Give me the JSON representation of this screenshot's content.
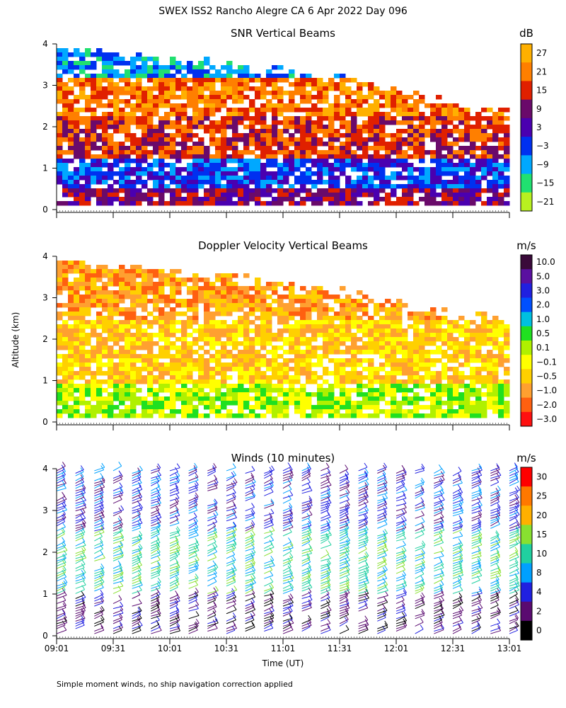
{
  "page": {
    "title": "SWEX ISS2 Rancho Alegre CA   6 Apr 2022 Day 096",
    "ylabel": "Altitude (km)",
    "xlabel": "Time (UT)",
    "footnote": "Simple moment winds, no ship navigation correction applied"
  },
  "chart_data": [
    {
      "type": "heatmap",
      "title": "SNR Vertical Beams",
      "units": "dB",
      "x_ticks": [
        "09:01",
        "09:31",
        "10:01",
        "10:31",
        "11:01",
        "11:31",
        "12:01",
        "12:31",
        "13:01"
      ],
      "y_ticks": [
        "0",
        "1",
        "2",
        "3",
        "4"
      ],
      "xlim": [
        "09:01",
        "13:01"
      ],
      "ylim": [
        0,
        4
      ],
      "colorbar": {
        "labels": [
          "27",
          "21",
          "15",
          "9",
          "3",
          "−3",
          "−9",
          "−15",
          "−21"
        ],
        "colors": [
          "#ffb000",
          "#ff7f00",
          "#e02000",
          "#6a0a6a",
          "#4a00b0",
          "#0030f0",
          "#00a8ff",
          "#20e070",
          "#b8f020"
        ]
      },
      "layers": [
        {
          "altitude_km": [
            0.15,
            0.6
          ],
          "value_class": "9"
        },
        {
          "altitude_km": [
            0.6,
            1.3
          ],
          "value_class": "-3"
        },
        {
          "altitude_km": [
            1.3,
            2.3
          ],
          "value_class": "15"
        },
        {
          "altitude_km": [
            2.3,
            3.2
          ],
          "value_class": "21"
        },
        {
          "altitude_km": [
            3.2,
            4.0
          ],
          "value_class": "-9"
        }
      ],
      "data_top_km": {
        "09:01": 4.0,
        "11:31": 3.2,
        "12:31": 2.6,
        "13:01": 2.4
      }
    },
    {
      "type": "heatmap",
      "title": "Doppler Velocity Vertical Beams",
      "units": "m/s",
      "x_ticks": [
        "09:01",
        "09:31",
        "10:01",
        "10:31",
        "11:01",
        "11:31",
        "12:01",
        "12:31",
        "13:01"
      ],
      "y_ticks": [
        "0",
        "1",
        "2",
        "3",
        "4"
      ],
      "xlim": [
        "09:01",
        "13:01"
      ],
      "ylim": [
        0,
        4
      ],
      "colorbar": {
        "labels": [
          "10.0",
          "5.0",
          "3.0",
          "2.0",
          "1.0",
          "0.5",
          "0.1",
          "−0.1",
          "−0.5",
          "−1.0",
          "−2.0",
          "−3.0"
        ],
        "colors": [
          "#3a0a3a",
          "#5a10a0",
          "#2020e0",
          "#0050ff",
          "#00c0e0",
          "#20e020",
          "#b0f000",
          "#ffff00",
          "#ffd000",
          "#ffa030",
          "#ff6010",
          "#ff1010"
        ]
      },
      "layers": [
        {
          "altitude_km": [
            0.15,
            1.0
          ],
          "value_class": "0.1"
        },
        {
          "altitude_km": [
            1.0,
            2.5
          ],
          "value_class": "-0.5"
        },
        {
          "altitude_km": [
            2.5,
            4.0
          ],
          "value_class": "-1.0"
        }
      ],
      "data_top_km": {
        "09:01": 4.0,
        "11:31": 3.2,
        "12:31": 2.7,
        "13:01": 2.5
      }
    },
    {
      "type": "wind_barbs",
      "title": "Winds (10 minutes)",
      "units": "m/s",
      "x_ticks": [
        "09:01",
        "09:31",
        "10:01",
        "10:31",
        "11:01",
        "11:31",
        "12:01",
        "12:31",
        "13:01"
      ],
      "y_ticks": [
        "0",
        "1",
        "2",
        "3",
        "4"
      ],
      "xlim": [
        "09:01",
        "13:01"
      ],
      "ylim": [
        0,
        4
      ],
      "colorbar": {
        "labels": [
          "30",
          "25",
          "20",
          "15",
          "10",
          "8",
          "4",
          "2",
          "0"
        ],
        "colors": [
          "#ff0000",
          "#ff7800",
          "#ffb000",
          "#88e030",
          "#20d0a0",
          "#00a0ff",
          "#2020e0",
          "#5a0a70",
          "#000000"
        ]
      },
      "profile_times": [
        "09:01",
        "09:11",
        "09:21",
        "09:31",
        "09:41",
        "09:51",
        "10:01",
        "10:11",
        "10:21",
        "10:31",
        "10:41",
        "10:51",
        "11:01",
        "11:11",
        "11:21",
        "11:31",
        "11:41",
        "11:51",
        "12:01",
        "12:11",
        "12:21",
        "12:31",
        "12:41",
        "12:51",
        "13:01"
      ],
      "speed_by_altitude": [
        {
          "altitude_km": [
            0.0,
            1.0
          ],
          "speed_ms": 3
        },
        {
          "altitude_km": [
            1.0,
            2.5
          ],
          "speed_ms": 10
        },
        {
          "altitude_km": [
            2.5,
            4.0
          ],
          "speed_ms": 6
        }
      ]
    }
  ]
}
